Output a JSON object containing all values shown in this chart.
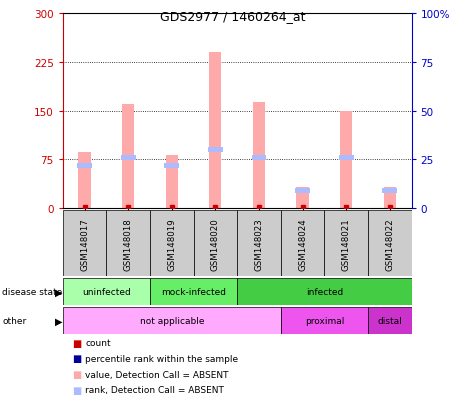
{
  "title": "GDS2977 / 1460264_at",
  "samples": [
    "GSM148017",
    "GSM148018",
    "GSM148019",
    "GSM148020",
    "GSM148023",
    "GSM148024",
    "GSM148021",
    "GSM148022"
  ],
  "bar_values_pink": [
    87,
    160,
    82,
    240,
    163,
    32,
    150,
    32
  ],
  "bar_values_blue_rank": [
    22,
    26,
    22,
    30,
    26,
    9,
    26,
    9
  ],
  "left_yticks": [
    0,
    75,
    150,
    225,
    300
  ],
  "right_yticks": [
    0,
    25,
    50,
    75,
    100
  ],
  "right_ylabels": [
    "0",
    "25",
    "50",
    "75",
    "100%"
  ],
  "disease_state_groups": [
    {
      "label": "uninfected",
      "start": 0,
      "end": 2,
      "color": "#aaffaa"
    },
    {
      "label": "mock-infected",
      "start": 2,
      "end": 4,
      "color": "#66ee66"
    },
    {
      "label": "infected",
      "start": 4,
      "end": 8,
      "color": "#44cc44"
    }
  ],
  "other_groups": [
    {
      "label": "not applicable",
      "start": 0,
      "end": 5,
      "color": "#ffaaff"
    },
    {
      "label": "proximal",
      "start": 5,
      "end": 7,
      "color": "#ee55ee"
    },
    {
      "label": "distal",
      "start": 7,
      "end": 8,
      "color": "#cc33cc"
    }
  ],
  "legend_items": [
    {
      "label": "count",
      "color": "#cc0000"
    },
    {
      "label": "percentile rank within the sample",
      "color": "#000099"
    },
    {
      "label": "value, Detection Call = ABSENT",
      "color": "#ffaaaa"
    },
    {
      "label": "rank, Detection Call = ABSENT",
      "color": "#aabbff"
    }
  ],
  "left_ycolor": "#cc0000",
  "right_ycolor": "#0000cc",
  "ylim_left": [
    0,
    300
  ],
  "ylim_right": [
    0,
    100
  ],
  "pink_bar_color": "#ffaaaa",
  "blue_seg_color": "#aabbff",
  "count_dot_color": "#cc0000",
  "rank_dot_color": "#000099",
  "bg_color": "#ffffff",
  "label_box_color": "#cccccc",
  "dotted_line_color": "#000000"
}
